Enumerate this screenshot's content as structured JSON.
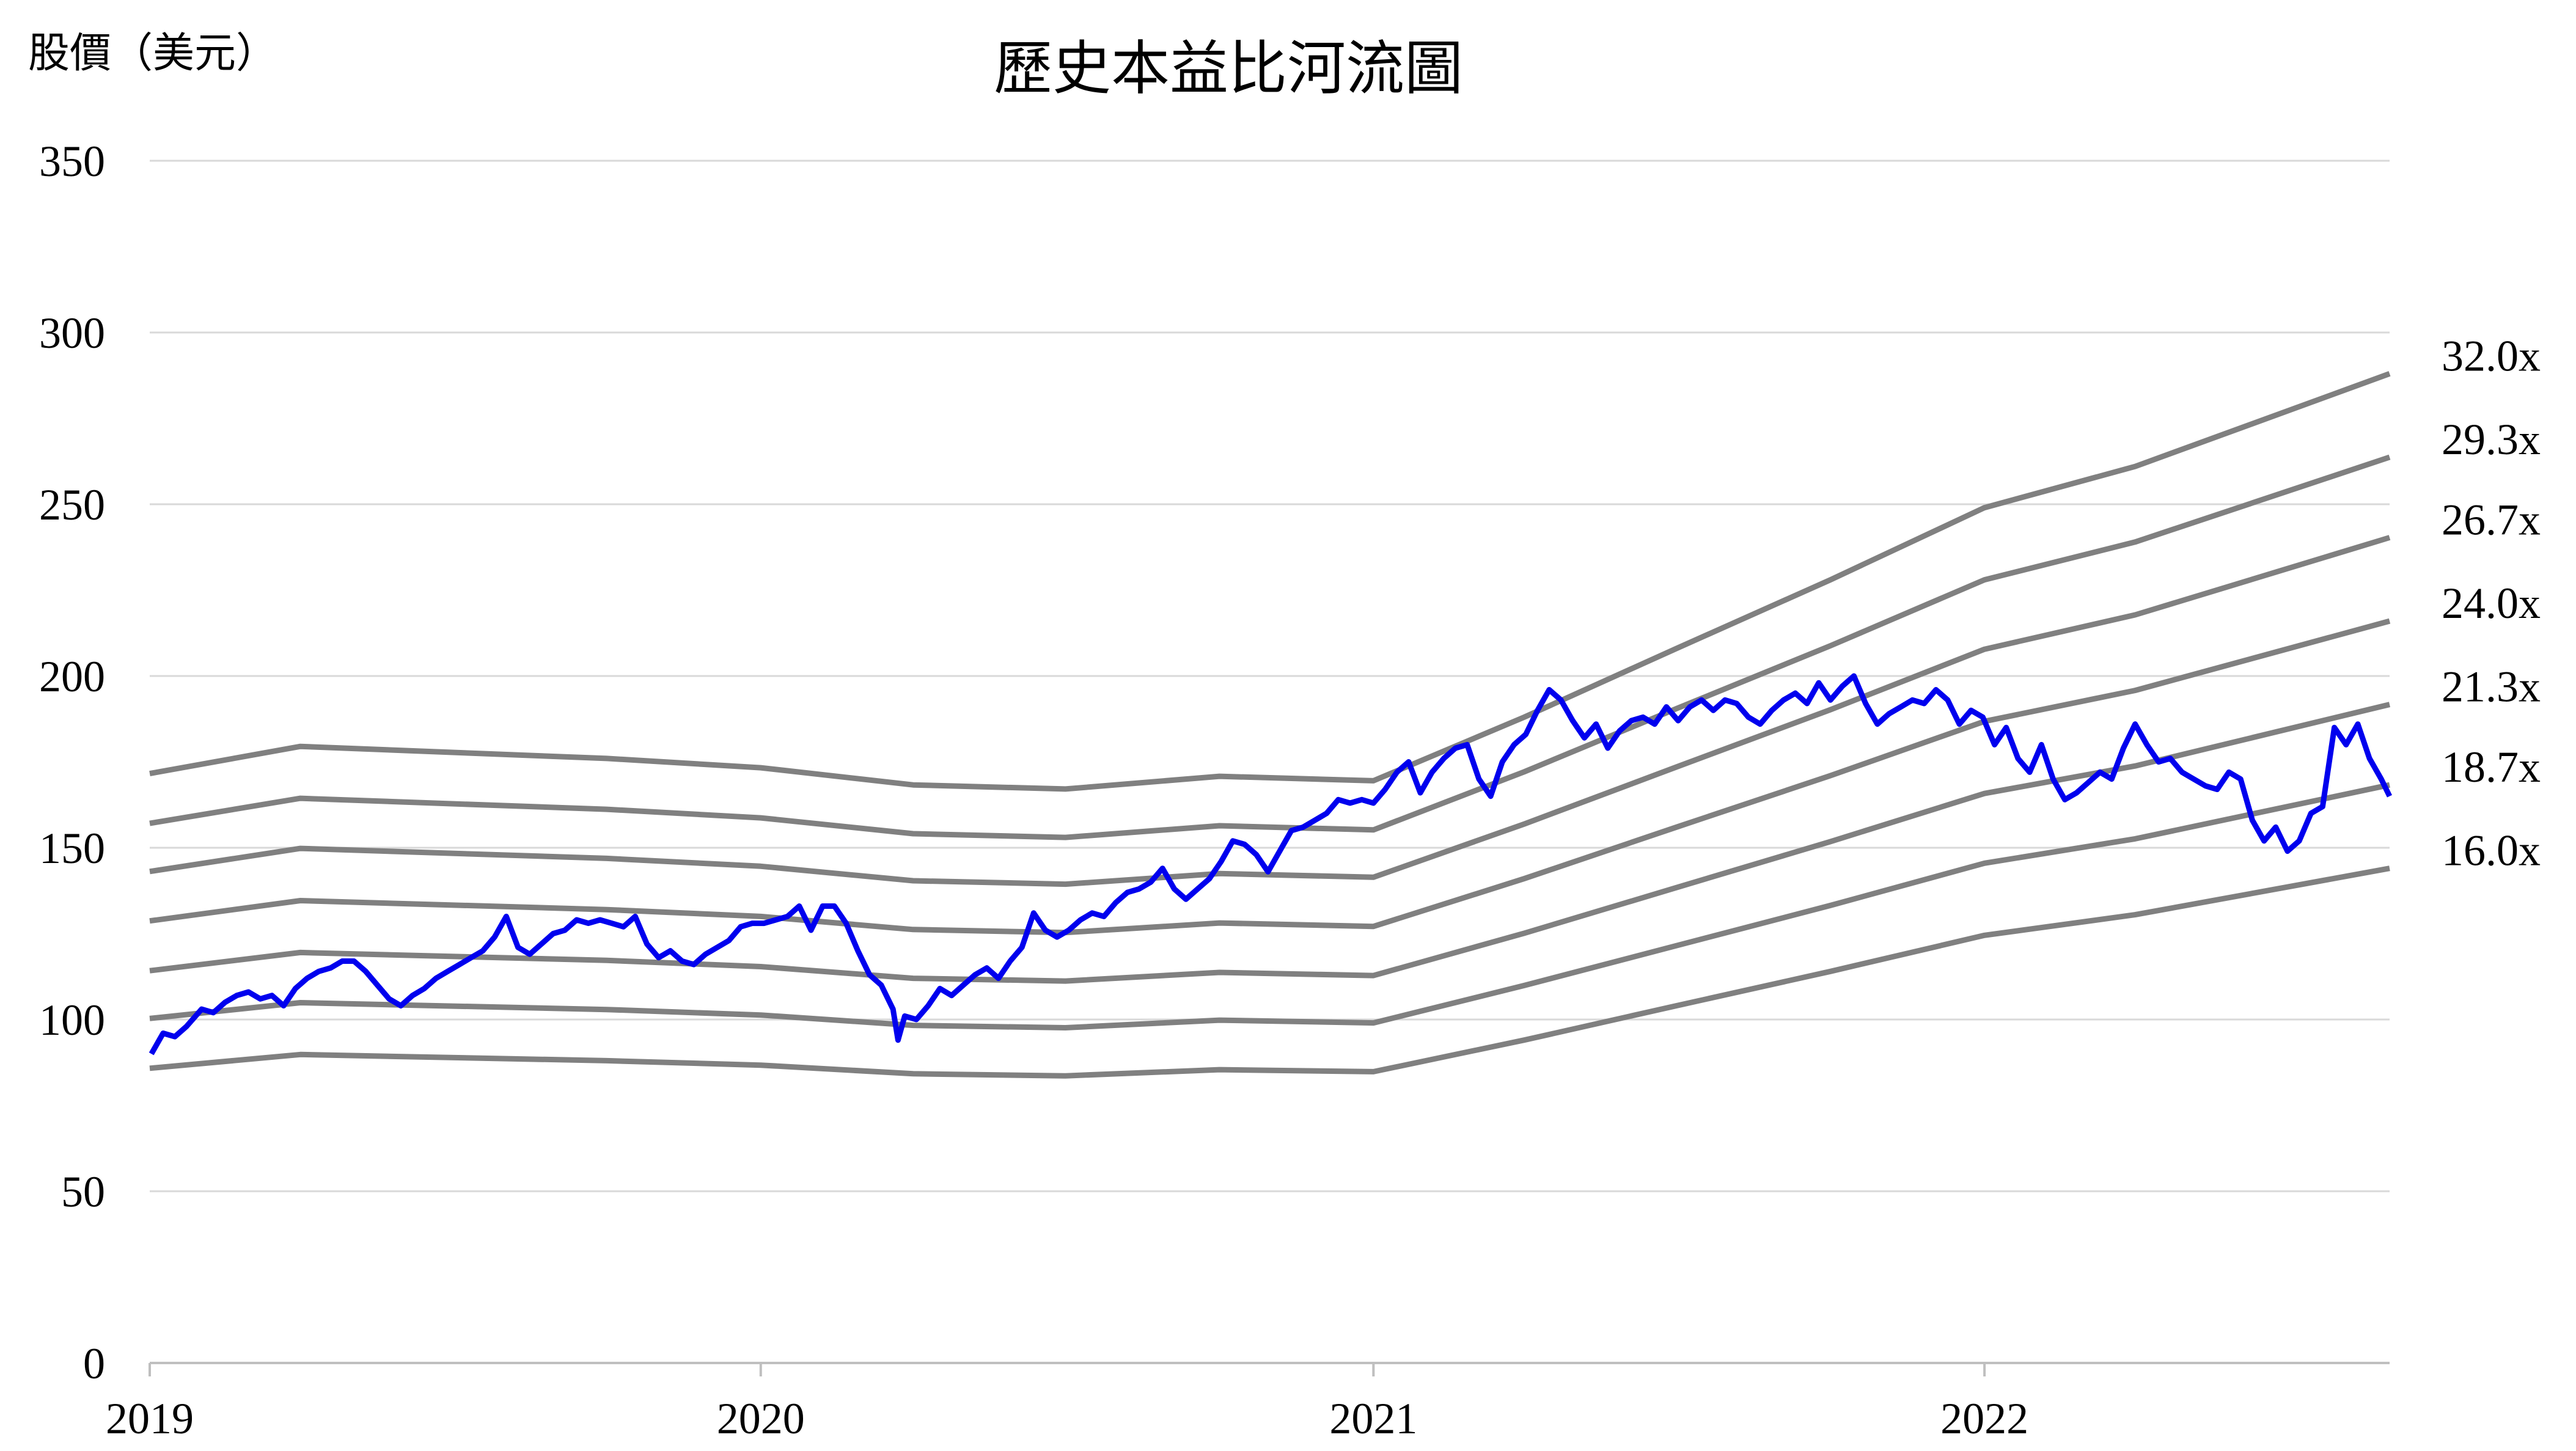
{
  "chart_data": {
    "type": "line",
    "title": "歷史本益比河流圖",
    "ylabel": "股價（美元）",
    "xlabel": "",
    "ylim": [
      0,
      350
    ],
    "yticks": [
      0,
      50,
      100,
      150,
      200,
      250,
      300,
      350
    ],
    "xlim": [
      "2019-01-01",
      "2022-08-31"
    ],
    "xticks": [
      "2019",
      "2020",
      "2021",
      "2022"
    ],
    "grid": "horizontal",
    "colors": {
      "price": "#0000ee",
      "band": "#808080",
      "grid": "#d9d9d9",
      "axis": "#bfbfbf"
    },
    "band_series": [
      {
        "name": "32.0x",
        "points": [
          [
            "2019-01-01",
            171.6
          ],
          [
            "2019-04-01",
            179.5
          ],
          [
            "2019-10-01",
            176.0
          ],
          [
            "2020-01-01",
            173.3
          ],
          [
            "2020-04-01",
            168.3
          ],
          [
            "2020-07-01",
            167.1
          ],
          [
            "2020-10-01",
            170.8
          ],
          [
            "2021-01-01",
            169.5
          ],
          [
            "2021-04-01",
            188.0
          ],
          [
            "2021-07-01",
            208.0
          ],
          [
            "2021-10-01",
            228.0
          ],
          [
            "2022-01-01",
            249.0
          ],
          [
            "2022-04-01",
            261.0
          ],
          [
            "2022-08-31",
            288.0
          ]
        ]
      },
      {
        "name": "29.3x",
        "points": [
          [
            "2019-01-01",
            157.1
          ],
          [
            "2019-04-01",
            164.4
          ],
          [
            "2019-10-01",
            161.2
          ],
          [
            "2020-01-01",
            158.7
          ],
          [
            "2020-04-01",
            154.1
          ],
          [
            "2020-07-01",
            153.0
          ],
          [
            "2020-10-01",
            156.4
          ],
          [
            "2021-01-01",
            155.2
          ],
          [
            "2021-04-01",
            172.1
          ],
          [
            "2021-07-01",
            190.5
          ],
          [
            "2021-10-01",
            208.8
          ],
          [
            "2022-01-01",
            228.0
          ],
          [
            "2022-04-01",
            239.0
          ],
          [
            "2022-08-31",
            263.7
          ]
        ]
      },
      {
        "name": "26.7x",
        "points": [
          [
            "2019-01-01",
            143.1
          ],
          [
            "2019-04-01",
            149.8
          ],
          [
            "2019-10-01",
            146.9
          ],
          [
            "2020-01-01",
            144.6
          ],
          [
            "2020-04-01",
            140.4
          ],
          [
            "2020-07-01",
            139.4
          ],
          [
            "2020-10-01",
            142.5
          ],
          [
            "2021-01-01",
            141.4
          ],
          [
            "2021-04-01",
            156.9
          ],
          [
            "2021-07-01",
            173.5
          ],
          [
            "2021-10-01",
            190.2
          ],
          [
            "2022-01-01",
            207.8
          ],
          [
            "2022-04-01",
            217.8
          ],
          [
            "2022-08-31",
            240.3
          ]
        ]
      },
      {
        "name": "24.0x",
        "points": [
          [
            "2019-01-01",
            128.7
          ],
          [
            "2019-04-01",
            134.6
          ],
          [
            "2019-10-01",
            132.0
          ],
          [
            "2020-01-01",
            130.0
          ],
          [
            "2020-04-01",
            126.2
          ],
          [
            "2020-07-01",
            125.3
          ],
          [
            "2020-10-01",
            128.1
          ],
          [
            "2021-01-01",
            127.1
          ],
          [
            "2021-04-01",
            141.0
          ],
          [
            "2021-07-01",
            156.0
          ],
          [
            "2021-10-01",
            171.0
          ],
          [
            "2022-01-01",
            186.8
          ],
          [
            "2022-04-01",
            195.8
          ],
          [
            "2022-08-31",
            216.0
          ]
        ]
      },
      {
        "name": "21.3x",
        "points": [
          [
            "2019-01-01",
            114.2
          ],
          [
            "2019-04-01",
            119.5
          ],
          [
            "2019-10-01",
            117.2
          ],
          [
            "2020-01-01",
            115.4
          ],
          [
            "2020-04-01",
            112.0
          ],
          [
            "2020-07-01",
            111.2
          ],
          [
            "2020-10-01",
            113.7
          ],
          [
            "2021-01-01",
            112.8
          ],
          [
            "2021-04-01",
            125.1
          ],
          [
            "2021-07-01",
            138.4
          ],
          [
            "2021-10-01",
            151.8
          ],
          [
            "2022-01-01",
            165.8
          ],
          [
            "2022-04-01",
            173.8
          ],
          [
            "2022-08-31",
            191.7
          ]
        ]
      },
      {
        "name": "18.7x",
        "points": [
          [
            "2019-01-01",
            100.3
          ],
          [
            "2019-04-01",
            104.9
          ],
          [
            "2019-10-01",
            102.9
          ],
          [
            "2020-01-01",
            101.3
          ],
          [
            "2020-04-01",
            98.3
          ],
          [
            "2020-07-01",
            97.6
          ],
          [
            "2020-10-01",
            99.8
          ],
          [
            "2021-01-01",
            99.0
          ],
          [
            "2021-04-01",
            109.9
          ],
          [
            "2021-07-01",
            121.5
          ],
          [
            "2021-10-01",
            133.2
          ],
          [
            "2022-01-01",
            145.5
          ],
          [
            "2022-04-01",
            152.6
          ],
          [
            "2022-08-31",
            168.3
          ]
        ]
      },
      {
        "name": "16.0x",
        "points": [
          [
            "2019-01-01",
            85.8
          ],
          [
            "2019-04-01",
            89.8
          ],
          [
            "2019-10-01",
            88.0
          ],
          [
            "2020-01-01",
            86.7
          ],
          [
            "2020-04-01",
            84.2
          ],
          [
            "2020-07-01",
            83.6
          ],
          [
            "2020-10-01",
            85.4
          ],
          [
            "2021-01-01",
            84.8
          ],
          [
            "2021-04-01",
            94.0
          ],
          [
            "2021-07-01",
            104.0
          ],
          [
            "2021-10-01",
            114.0
          ],
          [
            "2022-01-01",
            124.5
          ],
          [
            "2022-04-01",
            130.5
          ],
          [
            "2022-08-31",
            144.0
          ]
        ]
      }
    ],
    "price_series": {
      "points": [
        [
          "2019-01-02",
          90
        ],
        [
          "2019-01-09",
          96
        ],
        [
          "2019-01-16",
          95
        ],
        [
          "2019-01-23",
          98
        ],
        [
          "2019-02-01",
          103
        ],
        [
          "2019-02-08",
          102
        ],
        [
          "2019-02-15",
          105
        ],
        [
          "2019-02-22",
          107
        ],
        [
          "2019-03-01",
          108
        ],
        [
          "2019-03-08",
          106
        ],
        [
          "2019-03-15",
          107
        ],
        [
          "2019-03-22",
          104
        ],
        [
          "2019-03-29",
          109
        ],
        [
          "2019-04-05",
          112
        ],
        [
          "2019-04-12",
          114
        ],
        [
          "2019-04-19",
          115
        ],
        [
          "2019-04-26",
          117
        ],
        [
          "2019-05-03",
          117
        ],
        [
          "2019-05-10",
          114
        ],
        [
          "2019-05-17",
          110
        ],
        [
          "2019-05-24",
          106
        ],
        [
          "2019-05-31",
          104
        ],
        [
          "2019-06-07",
          107
        ],
        [
          "2019-06-14",
          109
        ],
        [
          "2019-06-21",
          112
        ],
        [
          "2019-06-28",
          114
        ],
        [
          "2019-07-05",
          116
        ],
        [
          "2019-07-12",
          118
        ],
        [
          "2019-07-19",
          120
        ],
        [
          "2019-07-26",
          124
        ],
        [
          "2019-08-02",
          130
        ],
        [
          "2019-08-09",
          121
        ],
        [
          "2019-08-16",
          119
        ],
        [
          "2019-08-23",
          122
        ],
        [
          "2019-08-30",
          125
        ],
        [
          "2019-09-06",
          126
        ],
        [
          "2019-09-13",
          129
        ],
        [
          "2019-09-20",
          128
        ],
        [
          "2019-09-27",
          129
        ],
        [
          "2019-10-04",
          128
        ],
        [
          "2019-10-11",
          127
        ],
        [
          "2019-10-18",
          130
        ],
        [
          "2019-10-25",
          122
        ],
        [
          "2019-11-01",
          118
        ],
        [
          "2019-11-08",
          120
        ],
        [
          "2019-11-15",
          117
        ],
        [
          "2019-11-22",
          116
        ],
        [
          "2019-11-29",
          119
        ],
        [
          "2019-12-06",
          121
        ],
        [
          "2019-12-13",
          123
        ],
        [
          "2019-12-20",
          127
        ],
        [
          "2019-12-27",
          128
        ],
        [
          "2020-01-03",
          128
        ],
        [
          "2020-01-10",
          129
        ],
        [
          "2020-01-17",
          130
        ],
        [
          "2020-01-24",
          133
        ],
        [
          "2020-01-31",
          126
        ],
        [
          "2020-02-07",
          133
        ],
        [
          "2020-02-14",
          133
        ],
        [
          "2020-02-21",
          128
        ],
        [
          "2020-02-28",
          120
        ],
        [
          "2020-03-06",
          113
        ],
        [
          "2020-03-13",
          110
        ],
        [
          "2020-03-20",
          103
        ],
        [
          "2020-03-23",
          94
        ],
        [
          "2020-03-27",
          101
        ],
        [
          "2020-04-03",
          100
        ],
        [
          "2020-04-10",
          104
        ],
        [
          "2020-04-17",
          109
        ],
        [
          "2020-04-24",
          107
        ],
        [
          "2020-05-01",
          110
        ],
        [
          "2020-05-08",
          113
        ],
        [
          "2020-05-15",
          115
        ],
        [
          "2020-05-22",
          112
        ],
        [
          "2020-05-29",
          117
        ],
        [
          "2020-06-05",
          121
        ],
        [
          "2020-06-12",
          131
        ],
        [
          "2020-06-19",
          126
        ],
        [
          "2020-06-26",
          124
        ],
        [
          "2020-07-03",
          126
        ],
        [
          "2020-07-10",
          129
        ],
        [
          "2020-07-17",
          131
        ],
        [
          "2020-07-24",
          130
        ],
        [
          "2020-07-31",
          134
        ],
        [
          "2020-08-07",
          137
        ],
        [
          "2020-08-14",
          138
        ],
        [
          "2020-08-21",
          140
        ],
        [
          "2020-08-28",
          144
        ],
        [
          "2020-09-04",
          138
        ],
        [
          "2020-09-11",
          135
        ],
        [
          "2020-09-18",
          138
        ],
        [
          "2020-09-25",
          141
        ],
        [
          "2020-10-02",
          146
        ],
        [
          "2020-10-09",
          152
        ],
        [
          "2020-10-16",
          151
        ],
        [
          "2020-10-23",
          148
        ],
        [
          "2020-10-30",
          143
        ],
        [
          "2020-11-06",
          149
        ],
        [
          "2020-11-13",
          155
        ],
        [
          "2020-11-20",
          156
        ],
        [
          "2020-11-27",
          158
        ],
        [
          "2020-12-04",
          160
        ],
        [
          "2020-12-11",
          164
        ],
        [
          "2020-12-18",
          163
        ],
        [
          "2020-12-25",
          164
        ],
        [
          "2021-01-01",
          163
        ],
        [
          "2021-01-08",
          167
        ],
        [
          "2021-01-15",
          172
        ],
        [
          "2021-01-22",
          175
        ],
        [
          "2021-01-29",
          166
        ],
        [
          "2021-02-05",
          172
        ],
        [
          "2021-02-12",
          176
        ],
        [
          "2021-02-19",
          179
        ],
        [
          "2021-02-26",
          180
        ],
        [
          "2021-03-05",
          170
        ],
        [
          "2021-03-12",
          165
        ],
        [
          "2021-03-19",
          175
        ],
        [
          "2021-03-26",
          180
        ],
        [
          "2021-04-02",
          183
        ],
        [
          "2021-04-09",
          190
        ],
        [
          "2021-04-16",
          196
        ],
        [
          "2021-04-23",
          193
        ],
        [
          "2021-04-30",
          187
        ],
        [
          "2021-05-07",
          182
        ],
        [
          "2021-05-14",
          186
        ],
        [
          "2021-05-21",
          179
        ],
        [
          "2021-05-28",
          184
        ],
        [
          "2021-06-04",
          187
        ],
        [
          "2021-06-11",
          188
        ],
        [
          "2021-06-18",
          186
        ],
        [
          "2021-06-25",
          191
        ],
        [
          "2021-07-02",
          187
        ],
        [
          "2021-07-09",
          191
        ],
        [
          "2021-07-16",
          193
        ],
        [
          "2021-07-23",
          190
        ],
        [
          "2021-07-30",
          193
        ],
        [
          "2021-08-06",
          192
        ],
        [
          "2021-08-13",
          188
        ],
        [
          "2021-08-20",
          186
        ],
        [
          "2021-08-27",
          190
        ],
        [
          "2021-09-03",
          193
        ],
        [
          "2021-09-10",
          195
        ],
        [
          "2021-09-17",
          192
        ],
        [
          "2021-09-24",
          198
        ],
        [
          "2021-10-01",
          193
        ],
        [
          "2021-10-08",
          197
        ],
        [
          "2021-10-15",
          200
        ],
        [
          "2021-10-22",
          192
        ],
        [
          "2021-10-29",
          186
        ],
        [
          "2021-11-05",
          189
        ],
        [
          "2021-11-12",
          191
        ],
        [
          "2021-11-19",
          193
        ],
        [
          "2021-11-26",
          192
        ],
        [
          "2021-12-03",
          196
        ],
        [
          "2021-12-10",
          193
        ],
        [
          "2021-12-17",
          186
        ],
        [
          "2021-12-24",
          190
        ],
        [
          "2021-12-31",
          188
        ],
        [
          "2022-01-07",
          180
        ],
        [
          "2022-01-14",
          185
        ],
        [
          "2022-01-21",
          176
        ],
        [
          "2022-01-28",
          172
        ],
        [
          "2022-02-04",
          180
        ],
        [
          "2022-02-11",
          170
        ],
        [
          "2022-02-18",
          164
        ],
        [
          "2022-02-25",
          166
        ],
        [
          "2022-03-04",
          169
        ],
        [
          "2022-03-11",
          172
        ],
        [
          "2022-03-18",
          170
        ],
        [
          "2022-03-25",
          179
        ],
        [
          "2022-04-01",
          186
        ],
        [
          "2022-04-08",
          180
        ],
        [
          "2022-04-15",
          175
        ],
        [
          "2022-04-22",
          176
        ],
        [
          "2022-04-29",
          172
        ],
        [
          "2022-05-06",
          170
        ],
        [
          "2022-05-13",
          168
        ],
        [
          "2022-05-20",
          167
        ],
        [
          "2022-05-27",
          172
        ],
        [
          "2022-06-03",
          170
        ],
        [
          "2022-06-10",
          158
        ],
        [
          "2022-06-17",
          152
        ],
        [
          "2022-06-24",
          156
        ],
        [
          "2022-07-01",
          149
        ],
        [
          "2022-07-08",
          152
        ],
        [
          "2022-07-15",
          160
        ],
        [
          "2022-07-22",
          162
        ],
        [
          "2022-07-29",
          185
        ],
        [
          "2022-08-05",
          180
        ],
        [
          "2022-08-12",
          186
        ],
        [
          "2022-08-19",
          176
        ],
        [
          "2022-08-26",
          170
        ],
        [
          "2022-08-31",
          165
        ]
      ]
    }
  }
}
